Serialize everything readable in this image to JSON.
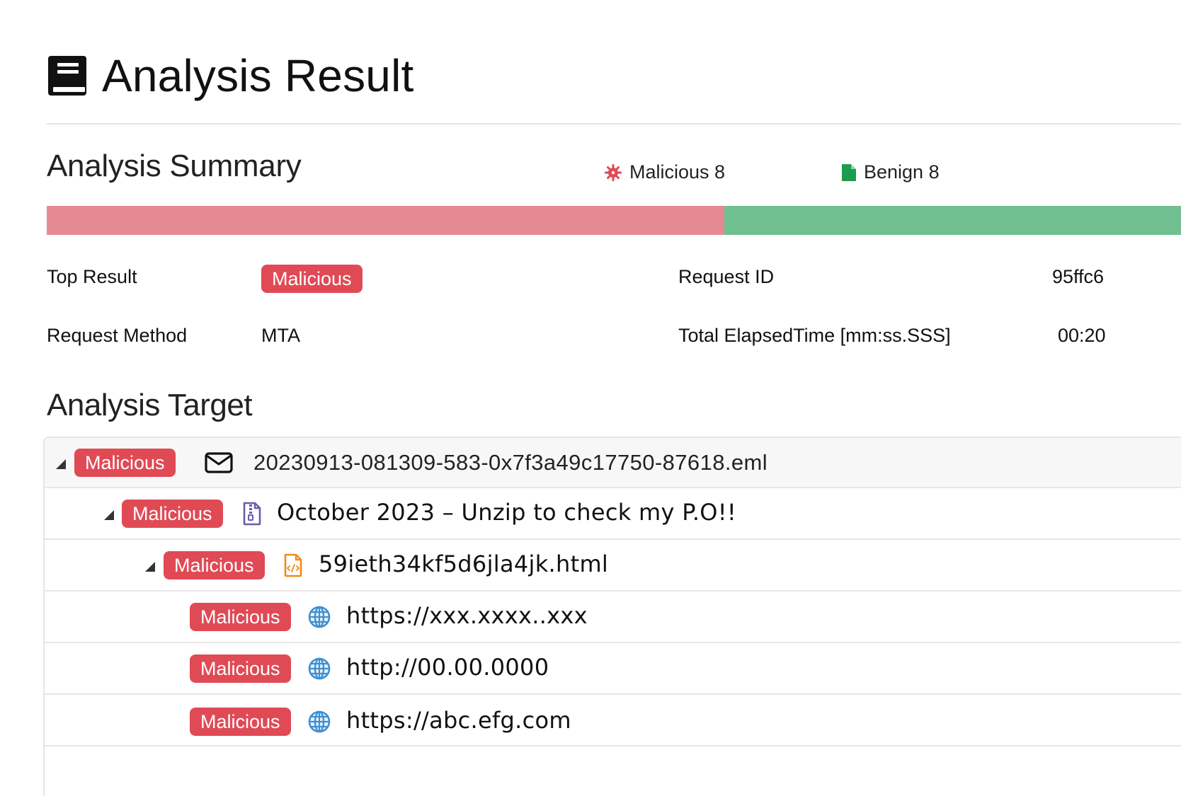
{
  "header": {
    "title": "Analysis Result",
    "title_icon": "book-icon"
  },
  "summary": {
    "heading": "Analysis Summary",
    "legend": {
      "malicious_label": "Malicious 8",
      "malicious_icon": "virus-icon",
      "malicious_color": "#e04a55",
      "benign_label": "Benign 8",
      "benign_icon": "file-icon",
      "benign_color": "#1e9b4e"
    },
    "ratio": {
      "malicious_count": 8,
      "benign_count": 8,
      "malicious_bar_color": "#e68a91",
      "benign_bar_color": "#71c092"
    },
    "top_result_label": "Top Result",
    "top_result_value": "Malicious",
    "request_method_label": "Request Method",
    "request_method_value": "MTA",
    "request_id_label": "Request ID",
    "request_id_value": "95ffc6",
    "elapsed_label": "Total ElapsedTime [mm:ss.SSS]",
    "elapsed_value": "00:20"
  },
  "target": {
    "heading": "Analysis Target",
    "rows": [
      {
        "badge": "Malicious",
        "icon": "envelope-icon",
        "text": "20230913-081309-583-0x7f3a49c17750-87618.eml",
        "expandable": true
      },
      {
        "badge": "Malicious",
        "icon": "zip-file-icon",
        "text": "October 2023 – Unzip to check my P.O!!",
        "expandable": true
      },
      {
        "badge": "Malicious",
        "icon": "html-file-icon",
        "text": "59ieth34kf5d6jla4jk.html",
        "expandable": true
      },
      {
        "badge": "Malicious",
        "icon": "globe-icon",
        "text": "https://xxx.xxxx..xxx",
        "expandable": false
      },
      {
        "badge": "Malicious",
        "icon": "globe-icon",
        "text": "http://00.00.0000",
        "expandable": false
      },
      {
        "badge": "Malicious",
        "icon": "globe-icon",
        "text": "https://abc.efg.com",
        "expandable": false
      }
    ]
  }
}
